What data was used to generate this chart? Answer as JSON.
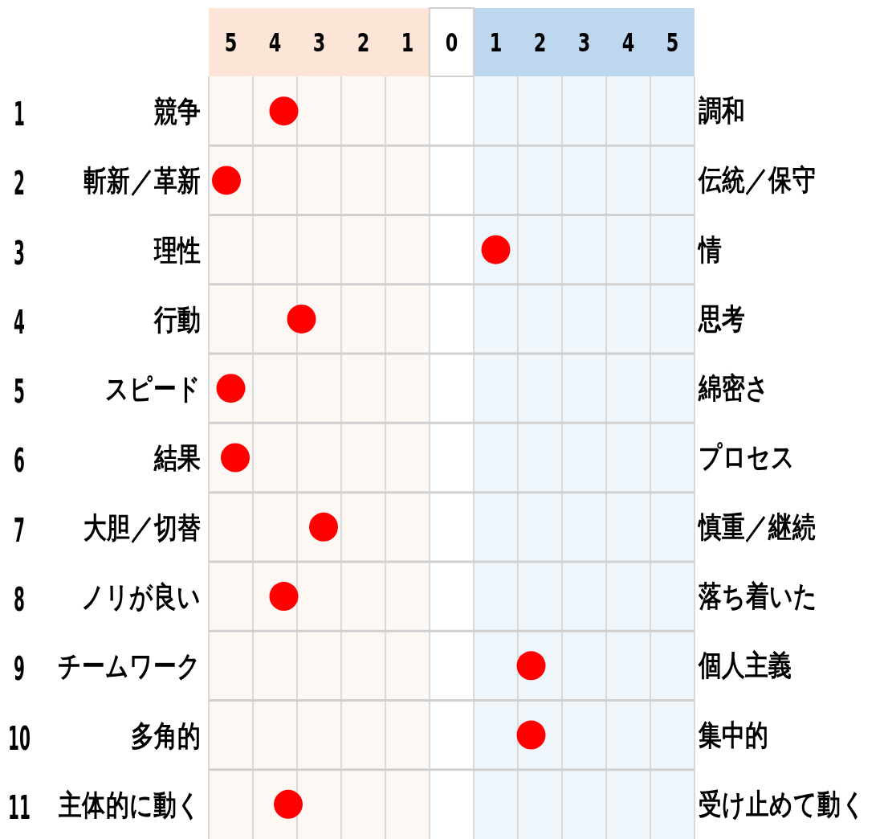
{
  "chart_data": {
    "type": "scatter",
    "orientation": "horizontal",
    "categories": [
      "競争",
      "斬新／革新",
      "理性",
      "行動",
      "スピード",
      "結果",
      "大胆／切替",
      "ノリが良い",
      "チームワーク",
      "多角的",
      "主体的に動く"
    ],
    "y2_categories": [
      "調和",
      "伝統／保守",
      "情",
      "思考",
      "綿密さ",
      "プロセス",
      "慎重／継続",
      "落ち着いた",
      "個人主義",
      "集中的",
      "受け止めて動く"
    ],
    "annotations": [
      "1",
      "2",
      "3",
      "4",
      "5",
      "6",
      "7",
      "8",
      "9",
      "10",
      "11"
    ],
    "values": [
      -3.8,
      -5.1,
      1.0,
      -3.4,
      -5.0,
      -4.9,
      -2.9,
      -3.8,
      1.8,
      1.8,
      -3.7
    ],
    "color": "#ff0000",
    "marker": "circle",
    "xlim": [
      -5.5,
      5.5
    ],
    "xticks": [
      {
        "value": -5,
        "label": "5"
      },
      {
        "value": -4,
        "label": "4"
      },
      {
        "value": -3,
        "label": "3"
      },
      {
        "value": -2,
        "label": "2"
      },
      {
        "value": -1,
        "label": "1"
      },
      0,
      1,
      2,
      3,
      4,
      5
    ],
    "bands": [
      {
        "axis": "x",
        "from": -5.5,
        "to": -0.5,
        "label": null,
        "color": "#fce4d6"
      },
      {
        "axis": "x",
        "from": 0.5,
        "to": 5.5,
        "label": null,
        "color": "#bdd7ee"
      }
    ],
    "grid": true
  }
}
